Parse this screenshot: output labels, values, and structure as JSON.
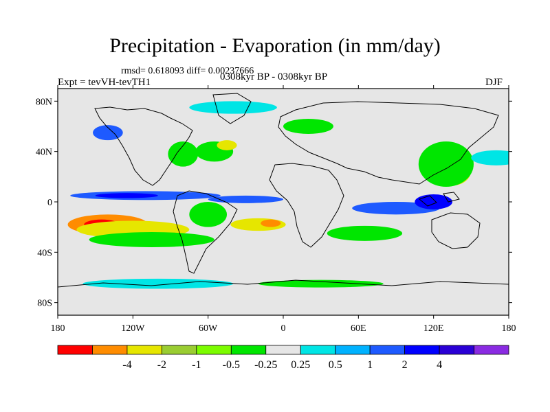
{
  "map": {
    "title": "Precipitation - Evaporation (in mm/day)",
    "stats": "rmsd= 0.618093 diff= 0.00237666",
    "experiment": "Expt = tevVH-tevTH1",
    "period": "0308kyr BP - 0308kyr BP",
    "season": "DJF",
    "projection": "cylindrical-equidistant",
    "lon_range": [
      -180,
      180
    ],
    "lat_range": [
      -90,
      90
    ],
    "lat_ticks": [
      {
        "value": 80,
        "label": "80N"
      },
      {
        "value": 40,
        "label": "40N"
      },
      {
        "value": 0,
        "label": "0"
      },
      {
        "value": -40,
        "label": "40S"
      },
      {
        "value": -80,
        "label": "80S"
      }
    ],
    "lon_ticks": [
      {
        "value": -180,
        "label": "180"
      },
      {
        "value": -120,
        "label": "120W"
      },
      {
        "value": -60,
        "label": "60W"
      },
      {
        "value": 0,
        "label": "0"
      },
      {
        "value": 60,
        "label": "60E"
      },
      {
        "value": 120,
        "label": "120E"
      },
      {
        "value": 180,
        "label": "180"
      }
    ],
    "background_color": "#e6e6e6",
    "colorbar": {
      "colors": [
        "#ff0000",
        "#ff8c00",
        "#e6e600",
        "#9acd32",
        "#7cfc00",
        "#00e600",
        "#e6e6e6",
        "#00e5e5",
        "#00b2ff",
        "#1e5aff",
        "#0000ff",
        "#2a00d5",
        "#8a2be2"
      ],
      "labels": [
        "-4",
        "-2",
        "-1",
        "-0.5",
        "-0.25",
        "0.25",
        "0.5",
        "1",
        "2",
        "4"
      ]
    },
    "regions": [
      {
        "name": "itcz-pacific",
        "color": "#1e5aff",
        "lon": -110,
        "lat": 5,
        "rx": 60,
        "ry": 3.5
      },
      {
        "name": "itcz-pacific-core",
        "color": "#0000ff",
        "lon": -125,
        "lat": 5,
        "rx": 25,
        "ry": 2
      },
      {
        "name": "south-pacific-dry",
        "color": "#ff8c00",
        "lon": -140,
        "lat": -18,
        "rx": 32,
        "ry": 8
      },
      {
        "name": "south-pacific-dry-core",
        "color": "#ff0000",
        "lon": -145,
        "lat": -18,
        "rx": 14,
        "ry": 4
      },
      {
        "name": "south-pacific-yellow",
        "color": "#e6e600",
        "lon": -120,
        "lat": -22,
        "rx": 45,
        "ry": 7
      },
      {
        "name": "south-pacific-green",
        "color": "#00e600",
        "lon": -105,
        "lat": -30,
        "rx": 50,
        "ry": 6
      },
      {
        "name": "atlantic-itcz",
        "color": "#1e5aff",
        "lon": -30,
        "lat": 2,
        "rx": 30,
        "ry": 3
      },
      {
        "name": "south-atlantic-yellow",
        "color": "#e6e600",
        "lon": -20,
        "lat": -18,
        "rx": 22,
        "ry": 5
      },
      {
        "name": "south-atlantic-orange",
        "color": "#ff8c00",
        "lon": -10,
        "lat": -17,
        "rx": 8,
        "ry": 3
      },
      {
        "name": "amazon-green",
        "color": "#00e600",
        "lon": -60,
        "lat": -10,
        "rx": 15,
        "ry": 10
      },
      {
        "name": "indian-ocean-blue",
        "color": "#1e5aff",
        "lon": 90,
        "lat": -5,
        "rx": 35,
        "ry": 5
      },
      {
        "name": "maritime-continent",
        "color": "#0000ff",
        "lon": 120,
        "lat": 0,
        "rx": 15,
        "ry": 6
      },
      {
        "name": "west-pacific-yellow",
        "color": "#e6e600",
        "lon": 135,
        "lat": 25,
        "rx": 15,
        "ry": 12
      },
      {
        "name": "west-pacific-green",
        "color": "#00e600",
        "lon": 130,
        "lat": 30,
        "rx": 22,
        "ry": 18
      },
      {
        "name": "indian-ocean-green",
        "color": "#00e600",
        "lon": 65,
        "lat": -25,
        "rx": 30,
        "ry": 6
      },
      {
        "name": "north-atlantic-green",
        "color": "#00e600",
        "lon": -55,
        "lat": 40,
        "rx": 15,
        "ry": 8
      },
      {
        "name": "north-atlantic-yellow",
        "color": "#e6e600",
        "lon": -45,
        "lat": 45,
        "rx": 8,
        "ry": 4
      },
      {
        "name": "north-pacific-blue",
        "color": "#1e5aff",
        "lon": -140,
        "lat": 55,
        "rx": 12,
        "ry": 6
      },
      {
        "name": "arctic-cyan",
        "color": "#00e5e5",
        "lon": -40,
        "lat": 75,
        "rx": 35,
        "ry": 5
      },
      {
        "name": "north-america-green",
        "color": "#00e600",
        "lon": -80,
        "lat": 38,
        "rx": 12,
        "ry": 10
      },
      {
        "name": "southern-ocean-cyan",
        "color": "#00e5e5",
        "lon": -100,
        "lat": -65,
        "rx": 60,
        "ry": 4
      },
      {
        "name": "southern-ocean-green",
        "color": "#00e600",
        "lon": 30,
        "lat": -65,
        "rx": 50,
        "ry": 3
      },
      {
        "name": "north-pacific-cyan",
        "color": "#00e5e5",
        "lon": 170,
        "lat": 35,
        "rx": 20,
        "ry": 6
      },
      {
        "name": "europe-green",
        "color": "#00e600",
        "lon": 20,
        "lat": 60,
        "rx": 20,
        "ry": 6
      }
    ]
  }
}
